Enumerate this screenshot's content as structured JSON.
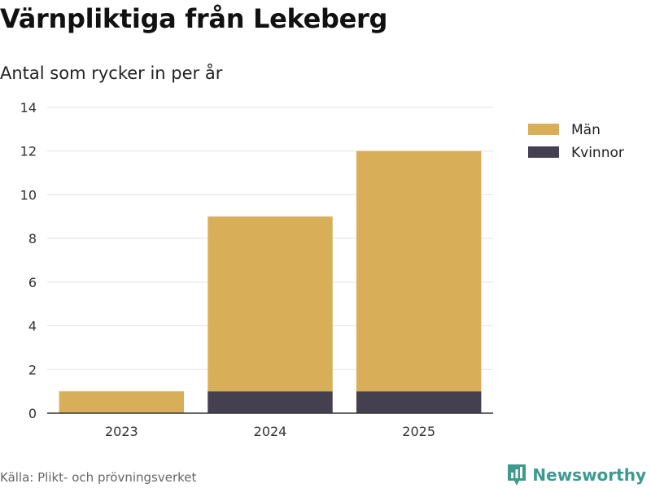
{
  "header": {
    "title": "Värnpliktiga från Lekeberg",
    "subtitle": "Antal som rycker in per år"
  },
  "footer": {
    "source": "Källa: Plikt- och prövningsverket",
    "brand": "Newsworthy"
  },
  "colors": {
    "man": "#d9ae58",
    "kvinnor": "#44404f",
    "brand": "#3d9a8f"
  },
  "chart_data": {
    "type": "bar",
    "stacked": true,
    "title": "Värnpliktiga från Lekeberg",
    "subtitle": "Antal som rycker in per år",
    "xlabel": "",
    "ylabel": "",
    "categories": [
      "2023",
      "2024",
      "2025"
    ],
    "series": [
      {
        "name": "Kvinnor",
        "values": [
          0,
          1,
          1
        ],
        "color": "#44404f"
      },
      {
        "name": "Män",
        "values": [
          1,
          8,
          11
        ],
        "color": "#d9ae58"
      }
    ],
    "legend": [
      {
        "name": "Män",
        "color": "#d9ae58"
      },
      {
        "name": "Kvinnor",
        "color": "#44404f"
      }
    ],
    "ylim": [
      0,
      14
    ],
    "yticks": [
      0,
      2,
      4,
      6,
      8,
      10,
      12,
      14
    ],
    "grid": true,
    "legend_position": "top-right"
  }
}
